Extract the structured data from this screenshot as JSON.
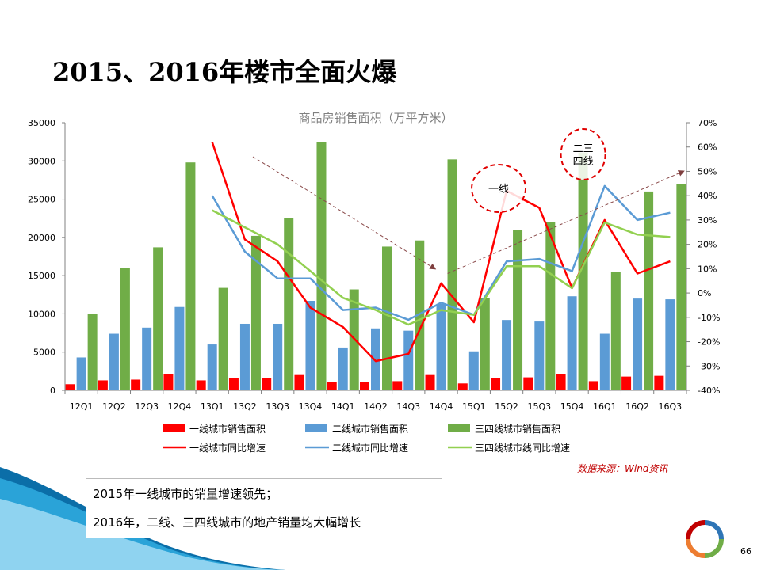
{
  "slide": {
    "title": "2015、2016年楼市全面火爆",
    "source": "数据来源：Wind资讯",
    "notes": [
      "2015年一线城市的销量增速领先；",
      "2016年，二线、三四线城市的地产销量均大幅增长"
    ],
    "page_number": "66"
  },
  "colors": {
    "tier1_bar": "#ff0000",
    "tier2_bar": "#5b9bd5",
    "tier34_bar": "#70ad47",
    "tier1_line": "#ff0000",
    "tier2_line": "#5b9bd5",
    "tier34_line": "#92d050",
    "accent_wave": "#1c8fc4"
  },
  "chart_data": {
    "type": "bar",
    "title": "商品房销售面积（万平方米）",
    "categories": [
      "12Q1",
      "12Q2",
      "12Q3",
      "12Q4",
      "13Q1",
      "13Q2",
      "13Q3",
      "13Q4",
      "14Q1",
      "14Q2",
      "14Q3",
      "14Q4",
      "15Q1",
      "15Q2",
      "15Q3",
      "15Q4",
      "16Q1",
      "16Q2",
      "16Q3"
    ],
    "ylim": [
      0,
      35000
    ],
    "y_ticks": [
      "0",
      "5000",
      "10000",
      "15000",
      "20000",
      "25000",
      "30000",
      "35000"
    ],
    "y2lim": [
      -40,
      70
    ],
    "y2_ticks": [
      "-40%",
      "-30%",
      "-20%",
      "-10%",
      "0%",
      "10%",
      "20%",
      "30%",
      "40%",
      "50%",
      "60%",
      "70%"
    ],
    "grid": false,
    "legend_position": "bottom",
    "series": [
      {
        "name": "一线城市销售面积",
        "type": "bar",
        "axis": "left",
        "values": [
          800,
          1300,
          1400,
          2100,
          1300,
          1600,
          1600,
          2000,
          1100,
          1100,
          1200,
          2000,
          900,
          1600,
          1700,
          2100,
          1200,
          1800,
          1900
        ]
      },
      {
        "name": "二线城市销售面积",
        "type": "bar",
        "axis": "left",
        "values": [
          4300,
          7400,
          8200,
          10900,
          6000,
          8700,
          8700,
          11700,
          5600,
          8100,
          7800,
          11300,
          5100,
          9200,
          9000,
          12300,
          7400,
          12000,
          11900
        ]
      },
      {
        "name": "三四线城市销售面积",
        "type": "bar",
        "axis": "left",
        "values": [
          10000,
          16000,
          18700,
          29800,
          13400,
          20200,
          22500,
          32500,
          13200,
          18800,
          19600,
          30200,
          12100,
          21000,
          22000,
          31100,
          15500,
          26000,
          27000
        ]
      },
      {
        "name": "一线城市同比增速",
        "type": "line",
        "axis": "right",
        "values": [
          null,
          null,
          null,
          null,
          62,
          22,
          13,
          -6,
          -14,
          -28,
          -25,
          4,
          -12,
          42,
          35,
          2,
          30,
          8,
          13
        ]
      },
      {
        "name": "二线城市同比增速",
        "type": "line",
        "axis": "right",
        "values": [
          null,
          null,
          null,
          null,
          40,
          17,
          6,
          6,
          -7,
          -6,
          -11,
          -4,
          -9,
          13,
          14,
          9,
          44,
          30,
          33
        ]
      },
      {
        "name": "三四线城市线同比增速",
        "type": "line",
        "axis": "right",
        "values": [
          null,
          null,
          null,
          null,
          34,
          27,
          20,
          9,
          -2,
          -7,
          -13,
          -7,
          -9,
          11,
          11,
          2,
          29,
          24,
          23
        ]
      }
    ],
    "annotations": [
      {
        "text": "一线",
        "category": "15Q2",
        "y2": 43
      },
      {
        "text": "二三\n四线",
        "category": "15Q4",
        "y2": 57
      }
    ]
  }
}
